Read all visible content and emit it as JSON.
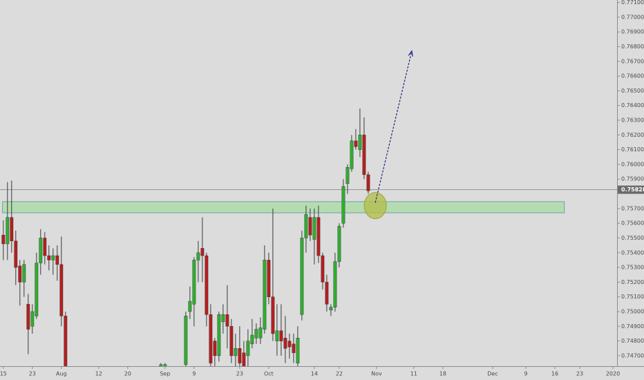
{
  "chart_data": {
    "type": "candlestick",
    "up_color": "#2fae2f",
    "down_color": "#b51f1f",
    "x": [
      0,
      1,
      2,
      3,
      4,
      5,
      6,
      7,
      8,
      9,
      10,
      11,
      12,
      13,
      14,
      15,
      38,
      39,
      44,
      45,
      46,
      47,
      48,
      49,
      50,
      51,
      52,
      53,
      54,
      55,
      56,
      57,
      58,
      59,
      60,
      61,
      62,
      63,
      64,
      65,
      66,
      67,
      68,
      69,
      70,
      71,
      72,
      73,
      74,
      75,
      76,
      77,
      78,
      79,
      80,
      81,
      82,
      83,
      84,
      85,
      86,
      87,
      88
    ],
    "open": [
      0.7552,
      0.7546,
      0.7564,
      0.7548,
      0.7531,
      0.752,
      0.7505,
      0.749,
      0.7497,
      0.7533,
      0.755,
      0.7538,
      0.7535,
      0.7538,
      0.7532,
      0.7497,
      0.746,
      0.746,
      0.7464,
      0.75,
      0.7505,
      0.7535,
      0.7543,
      0.7538,
      0.7498,
      0.748,
      0.747,
      0.7493,
      0.7498,
      0.749,
      0.747,
      0.7475,
      0.7472,
      0.747,
      0.7478,
      0.7482,
      0.7482,
      0.7488,
      0.7535,
      0.751,
      0.748,
      0.7487,
      0.7482,
      0.748,
      0.7478,
      0.7465,
      0.7498,
      0.755,
      0.7564,
      0.7549,
      0.7564,
      0.7538,
      0.752,
      0.7501,
      0.7503,
      0.7534,
      0.756,
      0.7587,
      0.7597,
      0.7616,
      0.761,
      0.762,
      0.7593
    ],
    "high": [
      0.7562,
      0.7588,
      0.7589,
      0.7555,
      0.7535,
      0.7535,
      0.7512,
      0.7505,
      0.754,
      0.7556,
      0.7554,
      0.7545,
      0.7543,
      0.7545,
      0.7551,
      0.75,
      0.7465,
      0.7465,
      0.75,
      0.7517,
      0.7537,
      0.7548,
      0.7564,
      0.754,
      0.7505,
      0.7482,
      0.75,
      0.7505,
      0.7518,
      0.7495,
      0.7485,
      0.749,
      0.748,
      0.7488,
      0.7495,
      0.7492,
      0.7496,
      0.7545,
      0.754,
      0.757,
      0.7505,
      0.7505,
      0.7497,
      0.7485,
      0.7485,
      0.749,
      0.7555,
      0.7572,
      0.757,
      0.757,
      0.7572,
      0.754,
      0.7525,
      0.7505,
      0.754,
      0.756,
      0.759,
      0.76,
      0.762,
      0.7624,
      0.7638,
      0.7632,
      0.7595
    ],
    "low": [
      0.7535,
      0.7535,
      0.754,
      0.7518,
      0.7504,
      0.751,
      0.7471,
      0.7485,
      0.7495,
      0.7525,
      0.7532,
      0.7528,
      0.7525,
      0.7521,
      0.749,
      0.7455,
      0.7455,
      0.7455,
      0.7455,
      0.7495,
      0.749,
      0.752,
      0.752,
      0.749,
      0.746,
      0.746,
      0.7466,
      0.7485,
      0.7475,
      0.7465,
      0.7462,
      0.746,
      0.7458,
      0.7462,
      0.7475,
      0.7478,
      0.7478,
      0.7485,
      0.7505,
      0.748,
      0.747,
      0.747,
      0.7465,
      0.7468,
      0.7465,
      0.7462,
      0.7494,
      0.754,
      0.7548,
      0.7532,
      0.7533,
      0.7515,
      0.75,
      0.7497,
      0.75,
      0.753,
      0.7557,
      0.758,
      0.7595,
      0.761,
      0.7605,
      0.759,
      0.758
    ],
    "close": [
      0.7546,
      0.7564,
      0.7548,
      0.753,
      0.752,
      0.7532,
      0.7488,
      0.75,
      0.7533,
      0.755,
      0.7538,
      0.7535,
      0.7538,
      0.7532,
      0.7497,
      0.746,
      0.7464,
      0.7464,
      0.7497,
      0.7507,
      0.7535,
      0.754,
      0.7538,
      0.7498,
      0.7465,
      0.747,
      0.7498,
      0.7498,
      0.749,
      0.747,
      0.7475,
      0.7465,
      0.7462,
      0.748,
      0.7484,
      0.7488,
      0.7489,
      0.7535,
      0.751,
      0.7485,
      0.7487,
      0.748,
      0.7475,
      0.7476,
      0.7472,
      0.7482,
      0.755,
      0.7566,
      0.7552,
      0.7564,
      0.7538,
      0.752,
      0.7505,
      0.7503,
      0.7534,
      0.7558,
      0.7585,
      0.7598,
      0.7616,
      0.7612,
      0.762,
      0.7593,
      0.7582
    ],
    "xlim": [
      -0.8,
      148
    ],
    "xticks": [
      {
        "value": 0,
        "label": "15"
      },
      {
        "value": 7,
        "label": "23"
      },
      {
        "value": 14,
        "label": "Aug"
      },
      {
        "value": 23,
        "label": "12"
      },
      {
        "value": 30,
        "label": "20"
      },
      {
        "value": 39,
        "label": "Sep"
      },
      {
        "value": 46,
        "label": "9"
      },
      {
        "value": 57,
        "label": "23"
      },
      {
        "value": 64,
        "label": "Oct"
      },
      {
        "value": 75,
        "label": "14"
      },
      {
        "value": 81,
        "label": "22"
      },
      {
        "value": 90,
        "label": "Nov"
      },
      {
        "value": 99,
        "label": "11"
      },
      {
        "value": 106,
        "label": "18"
      },
      {
        "value": 118,
        "label": "Dec"
      },
      {
        "value": 126,
        "label": "9"
      },
      {
        "value": 133,
        "label": "16"
      },
      {
        "value": 139,
        "label": "23"
      },
      {
        "value": 147,
        "label": "2020"
      }
    ],
    "ylim": [
      0.74629,
      0.77117
    ],
    "yticks": [
      {
        "value": 0.747,
        "label": "0.74700"
      },
      {
        "value": 0.748,
        "label": "0.74800"
      },
      {
        "value": 0.749,
        "label": "0.74900"
      },
      {
        "value": 0.75,
        "label": "0.75000"
      },
      {
        "value": 0.751,
        "label": "0.75100"
      },
      {
        "value": 0.752,
        "label": "0.75200"
      },
      {
        "value": 0.753,
        "label": "0.75300"
      },
      {
        "value": 0.754,
        "label": "0.75400"
      },
      {
        "value": 0.755,
        "label": "0.75500"
      },
      {
        "value": 0.756,
        "label": "0.75600"
      },
      {
        "value": 0.757,
        "label": "0.75700"
      },
      {
        "value": 0.759,
        "label": "0.75900"
      },
      {
        "value": 0.76,
        "label": "0.76000"
      },
      {
        "value": 0.761,
        "label": "0.76100"
      },
      {
        "value": 0.762,
        "label": "0.76200"
      },
      {
        "value": 0.763,
        "label": "0.76300"
      },
      {
        "value": 0.764,
        "label": "0.76400"
      },
      {
        "value": 0.765,
        "label": "0.76500"
      },
      {
        "value": 0.766,
        "label": "0.76600"
      },
      {
        "value": 0.767,
        "label": "0.76700"
      },
      {
        "value": 0.768,
        "label": "0.76800"
      },
      {
        "value": 0.769,
        "label": "0.76900"
      },
      {
        "value": 0.77,
        "label": "0.77000"
      },
      {
        "value": 0.771,
        "label": "0.77100"
      }
    ],
    "last_price": 0.75828,
    "zone": {
      "x": [
        -0.2,
        135.3
      ],
      "y": [
        0.75671,
        0.75747
      ]
    },
    "marker": {
      "x": 89.7,
      "y": 0.7572
    },
    "arrow": {
      "x": [
        89.7,
        98.5
      ],
      "y": [
        0.7574,
        0.7677
      ]
    }
  }
}
